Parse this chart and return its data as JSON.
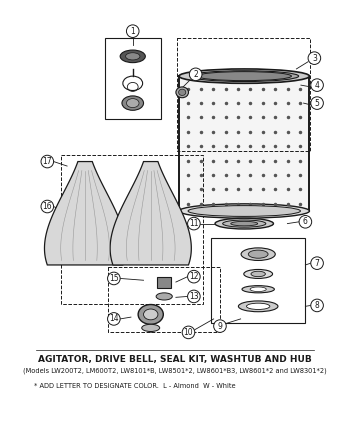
{
  "title": "AGITATOR, DRIVE BELL, SEAL KIT, WASHTUB AND HUB",
  "subtitle": "(Models LW200T2, LM600T2, LW8101*B, LW8501*2, LW8601*B3, LW8601*2 and LW8301*2)",
  "footnote": "* ADD LETTER TO DESIGNATE COLOR.  L - Almond  W - White",
  "title_fontsize": 6.5,
  "subtitle_fontsize": 4.8,
  "footnote_fontsize": 4.8,
  "bg_color": "#ffffff",
  "line_color": "#1a1a1a"
}
